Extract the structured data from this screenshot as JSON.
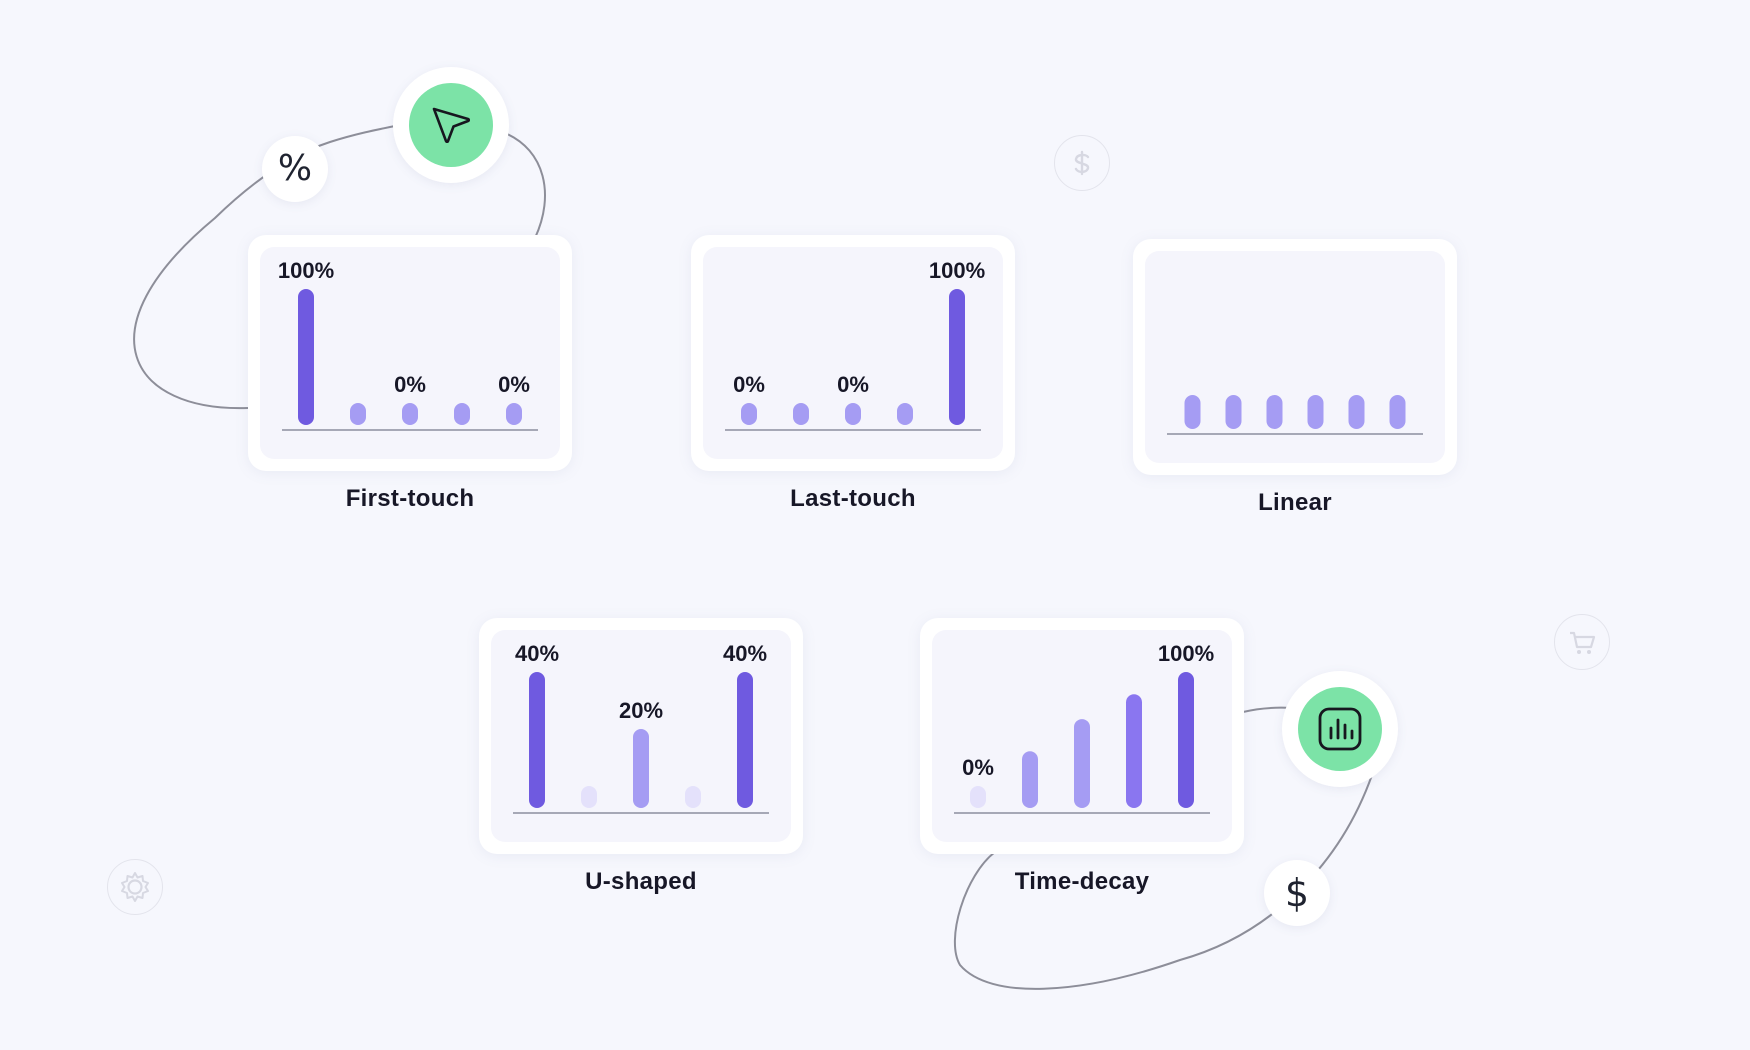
{
  "colors": {
    "background": "#f6f7fd",
    "bar_dark": "#6f5ae0",
    "bar_mid": "#a59cf3",
    "bar_light": "#e4e1fb",
    "accent_green": "#7ce3a7",
    "baseline": "#8c8f9f"
  },
  "chart_data": [
    {
      "type": "bar",
      "title": "First-touch",
      "values": [
        100,
        0,
        0,
        0,
        0
      ],
      "labels": [
        "100%",
        "",
        "0%",
        "",
        "0%"
      ],
      "tones": [
        "dark",
        "mid",
        "mid",
        "mid",
        "mid"
      ],
      "ylim": [
        0,
        100
      ]
    },
    {
      "type": "bar",
      "title": "Last-touch",
      "values": [
        0,
        0,
        0,
        0,
        100
      ],
      "labels": [
        "0%",
        "",
        "0%",
        "",
        "100%"
      ],
      "tones": [
        "mid",
        "mid",
        "mid",
        "mid",
        "dark"
      ],
      "ylim": [
        0,
        100
      ]
    },
    {
      "type": "bar",
      "title": "Linear",
      "values": [
        20,
        20,
        20,
        20,
        20,
        20
      ],
      "labels": [
        "",
        "",
        "",
        "",
        "",
        ""
      ],
      "tones": [
        "mid",
        "mid",
        "mid",
        "mid",
        "mid",
        "mid"
      ],
      "ylim": [
        0,
        100
      ]
    },
    {
      "type": "bar",
      "title": "U-shaped",
      "values": [
        40,
        0,
        20,
        0,
        40
      ],
      "labels": [
        "40%",
        "",
        "20%",
        "",
        "40%"
      ],
      "tones": [
        "dark",
        "light",
        "mid",
        "light",
        "dark"
      ],
      "ylim": [
        0,
        40
      ]
    },
    {
      "type": "bar",
      "title": "Time-decay",
      "values": [
        0,
        14,
        27,
        37,
        46
      ],
      "labels": [
        "0%",
        "",
        "",
        "",
        "100%"
      ],
      "tones": [
        "light",
        "mid",
        "mid",
        "bright",
        "dark"
      ],
      "ylim": [
        0,
        46
      ]
    }
  ],
  "badges": {
    "percent_symbol": "%",
    "dollar_symbol": "$"
  },
  "icons": {
    "cursor": "cursor-icon",
    "chart": "bar-chart-icon",
    "faint_dollar": "dollar-icon",
    "faint_cart": "shopping-cart-icon",
    "faint_gear": "gear-icon"
  }
}
